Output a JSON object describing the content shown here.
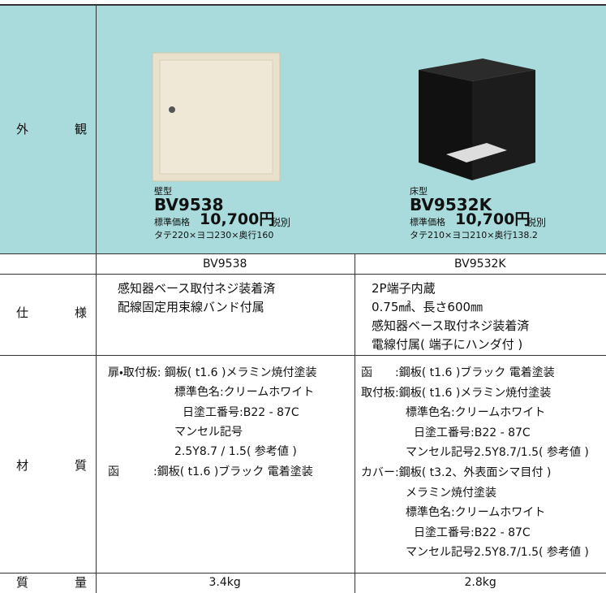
{
  "appearance": {
    "label": [
      "外",
      "観"
    ],
    "products": [
      {
        "type": "壁型",
        "model": "BV9538",
        "price_prefix": "標準価格",
        "price": "10,700円",
        "tax": "税別",
        "dims": "タテ220×ヨコ230×奥行160"
      },
      {
        "type": "床型",
        "model": "BV9532K",
        "price_prefix": "標準価格",
        "price": "10,700円",
        "tax": "税別",
        "dims": "タテ210×ヨコ210×奥行138.2"
      }
    ]
  },
  "models": [
    "BV9538",
    "BV9532K"
  ],
  "spec": {
    "label": [
      "仕",
      "様"
    ],
    "left": [
      "感知器ベース取付ネジ装着済",
      "配線固定用束線バンド付属"
    ],
    "right": [
      "2P端子内蔵",
      "0.75㎟、長さ600㎜",
      "感知器ベース取付ネジ装着済",
      "電線付属( 端子にハンダ付 )"
    ]
  },
  "material": {
    "label": [
      "材",
      "質"
    ],
    "left": [
      "扉・取付板: 鋼板( t1.6 )メラミン焼付塗装",
      "標準色名:クリームホワイト",
      "日塗工番号:B22 - 87C",
      "マンセル記号",
      "2.5Y8.7 / 1.5( 参考値 )",
      "函　　　:鋼板( t1.6 )ブラック 電着塗装"
    ],
    "right": [
      "函　　:鋼板( t1.6 )ブラック 電着塗装",
      "取付板:鋼板( t1.6 )メラミン焼付塗装",
      "標準色名:クリームホワイト",
      "日塗工番号:B22 - 87C",
      "マンセル記号2.5Y8.7/1.5( 参考値 )",
      "カバー:鋼板( t3.2、外表面シマ目付 )",
      "メラミン焼付塗装",
      "標準色名:クリームホワイト",
      "日塗工番号:B22 - 87C",
      "マンセル記号2.5Y8.7/1.5( 参考値 )"
    ]
  },
  "weight": {
    "label": [
      "質",
      "量"
    ],
    "values": [
      "3.4kg",
      "2.8kg"
    ]
  }
}
